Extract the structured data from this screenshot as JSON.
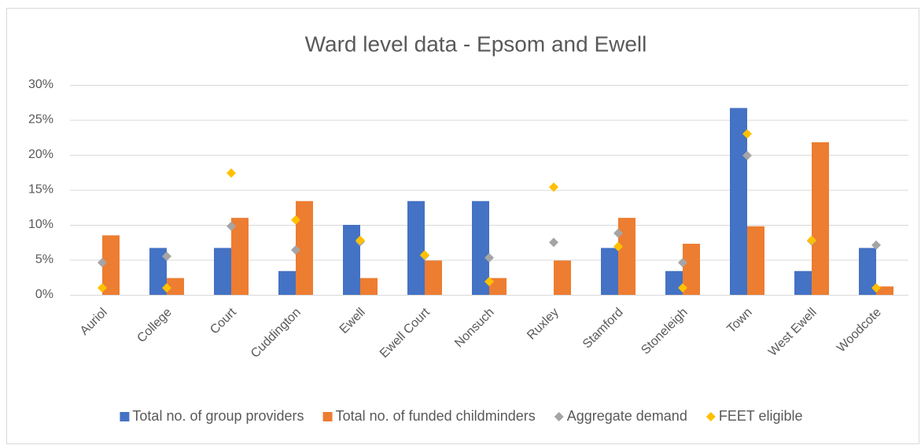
{
  "chart_data": {
    "type": "bar",
    "title": "Ward level data - Epsom and Ewell",
    "categories": [
      "Auriol",
      "College",
      "Court",
      "Cuddington",
      "Ewell",
      "Ewell Court",
      "Nonsuch",
      "Ruxley",
      "Stamford",
      "Stoneleigh",
      "Town",
      "West Ewell",
      "Woodcote"
    ],
    "series": [
      {
        "name": "Total no. of group providers",
        "type": "bar",
        "color": "#4472c4",
        "values": [
          0,
          6.7,
          6.7,
          3.4,
          10,
          13.4,
          13.4,
          0,
          6.7,
          3.4,
          26.7,
          3.4,
          6.7
        ]
      },
      {
        "name": "Total no. of funded childminders",
        "type": "bar",
        "color": "#ed7d31",
        "values": [
          8.5,
          2.4,
          11,
          13.4,
          2.4,
          4.9,
          2.4,
          4.9,
          11,
          7.3,
          9.8,
          21.8,
          1.2
        ]
      },
      {
        "name": "Aggregate demand",
        "type": "scatter",
        "color": "#a5a5a5",
        "values": [
          4.6,
          5.5,
          9.8,
          6.4,
          7.6,
          5.6,
          5.3,
          7.5,
          8.8,
          4.6,
          19.9,
          7.7,
          7.1
        ]
      },
      {
        "name": "FEET eligible",
        "type": "scatter",
        "color": "#ffc000",
        "values": [
          1,
          1,
          17.4,
          10.7,
          7.8,
          5.7,
          1.9,
          15.4,
          6.9,
          1,
          23,
          7.8,
          1
        ]
      }
    ],
    "ylim": [
      0,
      30
    ],
    "yticks": [
      {
        "value": 0,
        "label": "0%"
      },
      {
        "value": 5,
        "label": "5%"
      },
      {
        "value": 10,
        "label": "10%"
      },
      {
        "value": 15,
        "label": "15%"
      },
      {
        "value": 20,
        "label": "20%"
      },
      {
        "value": 25,
        "label": "25%"
      },
      {
        "value": 30,
        "label": "30%"
      }
    ],
    "grid": true,
    "legend": "bottom"
  }
}
